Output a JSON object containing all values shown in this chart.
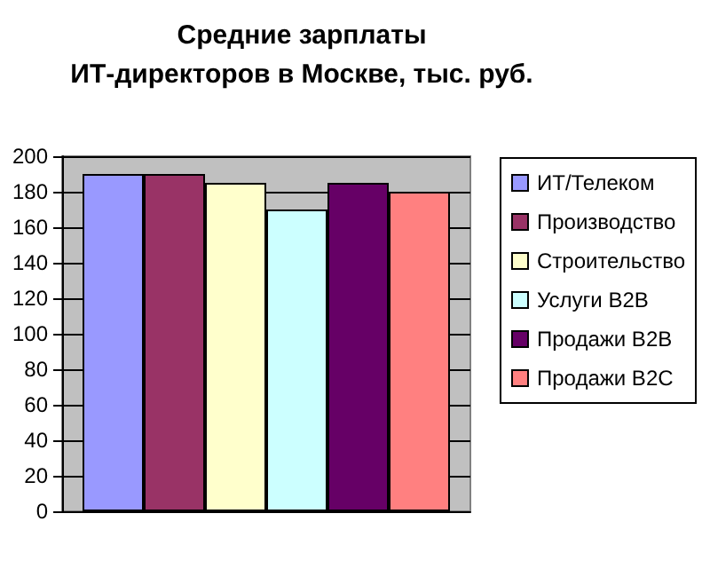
{
  "chart_data": {
    "type": "bar",
    "title": "Средние зарплаты\nИТ-директоров в Москве, тыс. руб.",
    "categories": [
      null
    ],
    "series": [
      {
        "name": "ИТ/Телеком",
        "color": "#9999ff",
        "values": [
          190
        ]
      },
      {
        "name": "Производство",
        "color": "#993366",
        "values": [
          190
        ]
      },
      {
        "name": "Строительство",
        "color": "#ffffcc",
        "values": [
          185
        ]
      },
      {
        "name": "Услуги B2B",
        "color": "#ccffff",
        "values": [
          170
        ]
      },
      {
        "name": "Продажи B2B",
        "color": "#660066",
        "values": [
          185
        ]
      },
      {
        "name": "Продажи B2C",
        "color": "#ff8080",
        "values": [
          180
        ]
      }
    ],
    "ylim": [
      0,
      200
    ],
    "yticks": [
      0,
      20,
      40,
      60,
      80,
      100,
      120,
      140,
      160,
      180,
      200
    ],
    "grid": "y",
    "legend": "right"
  }
}
